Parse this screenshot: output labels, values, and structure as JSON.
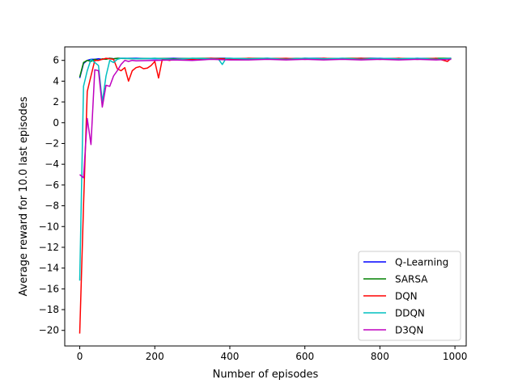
{
  "chart_data": {
    "type": "line",
    "xlabel": "Number of episodes",
    "ylabel": "Average reward for 10.0  last episodes",
    "xlim": [
      -40,
      1030
    ],
    "ylim": [
      -21.5,
      7.3
    ],
    "xticks": [
      0,
      200,
      400,
      600,
      800,
      1000
    ],
    "yticks": [
      6,
      4,
      2,
      0,
      -2,
      -4,
      -6,
      -8,
      -10,
      -12,
      -14,
      -16,
      -18,
      -20
    ],
    "ytick_labels": [
      "6",
      "4",
      "2",
      "0",
      "−2",
      "−4",
      "−6",
      "−8",
      "−10",
      "−12",
      "−14",
      "−16",
      "−18",
      "−20"
    ],
    "grid": false,
    "legend_position": "lower-right",
    "series": [
      {
        "name": "Q-Learning",
        "color": "#0000ff",
        "x": [
          0,
          10,
          20,
          30,
          40,
          50,
          60,
          70,
          80,
          90,
          100,
          150,
          200,
          250,
          300,
          350,
          400,
          450,
          500,
          550,
          600,
          650,
          700,
          750,
          800,
          850,
          900,
          950,
          990
        ],
        "y": [
          4.3,
          5.7,
          6.0,
          6.1,
          6.1,
          6.15,
          6.1,
          6.15,
          6.2,
          6.15,
          6.2,
          6.2,
          6.15,
          6.2,
          6.15,
          6.2,
          6.2,
          6.15,
          6.2,
          6.15,
          6.2,
          6.2,
          6.15,
          6.2,
          6.2,
          6.15,
          6.2,
          6.15,
          6.2
        ]
      },
      {
        "name": "SARSA",
        "color": "#008000",
        "x": [
          0,
          10,
          20,
          30,
          40,
          50,
          60,
          70,
          80,
          90,
          100,
          150,
          200,
          250,
          300,
          350,
          400,
          450,
          500,
          550,
          600,
          650,
          700,
          750,
          800,
          850,
          900,
          950,
          990
        ],
        "y": [
          4.4,
          5.8,
          6.0,
          5.9,
          6.1,
          6.0,
          6.15,
          6.1,
          6.2,
          6.15,
          6.2,
          6.15,
          6.2,
          6.15,
          6.2,
          6.2,
          6.15,
          6.2,
          6.2,
          6.15,
          6.2,
          6.15,
          6.2,
          6.2,
          6.15,
          6.2,
          6.15,
          6.2,
          6.2
        ]
      },
      {
        "name": "DQN",
        "color": "#ff0000",
        "x": [
          0,
          10,
          20,
          30,
          40,
          50,
          60,
          70,
          80,
          90,
          100,
          110,
          120,
          130,
          140,
          150,
          160,
          170,
          180,
          190,
          200,
          210,
          220,
          240,
          260,
          300,
          350,
          400,
          450,
          500,
          550,
          600,
          650,
          700,
          750,
          800,
          850,
          900,
          950,
          980,
          990
        ],
        "y": [
          -20.3,
          -8.0,
          3.0,
          4.5,
          6.0,
          6.0,
          6.1,
          6.2,
          6.15,
          6.1,
          5.2,
          5.0,
          5.3,
          4.0,
          5.0,
          5.3,
          5.4,
          5.2,
          5.25,
          5.5,
          5.9,
          4.3,
          6.1,
          6.0,
          6.15,
          6.1,
          6.2,
          6.1,
          6.2,
          6.15,
          6.2,
          6.1,
          6.2,
          6.15,
          6.2,
          6.1,
          6.2,
          6.1,
          6.2,
          5.9,
          6.2
        ]
      },
      {
        "name": "DDQN",
        "color": "#00bfbf",
        "x": [
          0,
          10,
          20,
          30,
          40,
          50,
          60,
          70,
          80,
          90,
          100,
          110,
          120,
          150,
          200,
          250,
          300,
          350,
          370,
          380,
          390,
          400,
          450,
          500,
          550,
          600,
          650,
          700,
          750,
          800,
          850,
          900,
          950,
          990
        ],
        "y": [
          -15.2,
          3.5,
          5.0,
          6.1,
          5.8,
          5.5,
          2.0,
          4.5,
          6.0,
          5.8,
          6.1,
          6.2,
          6.2,
          6.15,
          6.2,
          6.1,
          6.2,
          6.15,
          6.1,
          5.6,
          6.2,
          6.2,
          6.15,
          6.2,
          6.1,
          6.2,
          6.15,
          6.2,
          6.1,
          6.2,
          6.15,
          6.2,
          6.1,
          6.2
        ]
      },
      {
        "name": "D3QN",
        "color": "#bf00bf",
        "x": [
          0,
          10,
          20,
          30,
          40,
          50,
          60,
          70,
          80,
          90,
          100,
          110,
          120,
          130,
          140,
          150,
          200,
          250,
          300,
          350,
          400,
          450,
          500,
          550,
          600,
          650,
          700,
          750,
          800,
          850,
          900,
          950,
          990
        ],
        "y": [
          -5.0,
          -5.3,
          0.4,
          -2.1,
          5.1,
          5.0,
          1.5,
          3.6,
          3.5,
          4.5,
          5.0,
          5.6,
          6.0,
          5.9,
          6.0,
          5.95,
          6.0,
          6.05,
          6.0,
          6.1,
          6.05,
          6.05,
          6.1,
          6.05,
          6.1,
          6.05,
          6.1,
          6.05,
          6.1,
          6.05,
          6.1,
          6.05,
          6.1
        ]
      }
    ]
  }
}
